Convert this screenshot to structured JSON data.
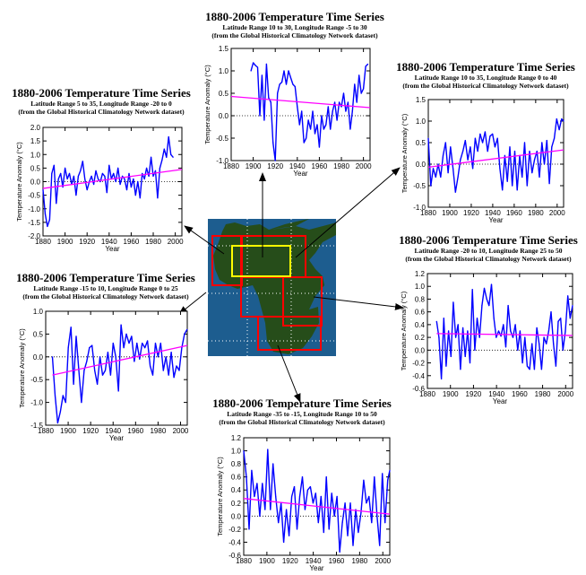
{
  "chart_data": [
    {
      "id": "a",
      "type": "line",
      "title": "1880-2006 Temperature Time Series",
      "subtitle": "Latitude Range 10 to 30, Longitude Range -5 to 30",
      "source": "(from the Global Historical Climatology Network dataset)",
      "xlabel": "Year",
      "ylabel": "Temperature Anomaly (°C)",
      "xlim": [
        1880,
        2006
      ],
      "ylim": [
        -1.0,
        1.5
      ],
      "xticks": [
        "1880",
        "1900",
        "1920",
        "1940",
        "1960",
        "1980",
        "2000"
      ],
      "yticks": [
        "-1.0",
        "-0.5",
        "0.0",
        "0.5",
        "1.0",
        "1.5"
      ],
      "x_start": 1898,
      "x_step": 2,
      "values": [
        1.0,
        1.18,
        1.12,
        1.08,
        0.0,
        0.9,
        -0.1,
        1.15,
        0.4,
        0.3,
        -0.6,
        -1.0,
        0.5,
        0.7,
        0.75,
        1.0,
        0.7,
        1.0,
        0.85,
        0.7,
        0.65,
        0.2,
        -0.2,
        0.1,
        -0.6,
        -0.5,
        -0.1,
        -0.3,
        0.1,
        -0.4,
        -0.2,
        -0.7,
        0.0,
        -0.3,
        -0.2,
        0.2,
        -0.3,
        0.1,
        0.3,
        -0.1,
        0.3,
        0.2,
        0.5,
        0.1,
        0.3,
        -0.3,
        0.1,
        0.7,
        0.3,
        0.9,
        0.5,
        0.6,
        1.1,
        1.15
      ],
      "trend": [
        [
          1880,
          0.43
        ],
        [
          2006,
          0.18
        ]
      ]
    },
    {
      "id": "b",
      "type": "line",
      "title": "1880-2006 Temperature Time Series",
      "subtitle": "Latitude Range 5 to 35, Longitude Range -20 to 0",
      "source": "(from the Global Historical Climatology Network dataset)",
      "xlabel": "Year",
      "ylabel": "Temperature Anomaly (°C)",
      "xlim": [
        1880,
        2006
      ],
      "ylim": [
        -2.0,
        2.0
      ],
      "xticks": [
        "1880",
        "1900",
        "1920",
        "1940",
        "1960",
        "1980",
        "2000"
      ],
      "yticks": [
        "-2.0",
        "-1.5",
        "-1.0",
        "-0.5",
        "0.0",
        "0.5",
        "1.0",
        "1.5",
        "2.0"
      ],
      "x_start": 1880,
      "x_step": 2,
      "values": [
        -0.3,
        -1.2,
        -1.65,
        -1.4,
        0.3,
        0.6,
        -0.8,
        0.1,
        0.3,
        -0.2,
        0.5,
        0.1,
        0.3,
        -0.1,
        0.2,
        -0.5,
        0.2,
        0.4,
        0.75,
        0.1,
        -0.3,
        0.0,
        0.2,
        -0.1,
        0.4,
        0.1,
        0.0,
        0.3,
        0.2,
        -0.4,
        0.6,
        0.1,
        0.3,
        0.0,
        0.5,
        -0.1,
        0.2,
        0.1,
        -0.3,
        0.3,
        -0.2,
        0.1,
        -0.5,
        0.0,
        -0.6,
        0.3,
        0.1,
        0.5,
        0.2,
        0.9,
        0.2,
        0.4,
        -0.6,
        0.5,
        0.8,
        1.2,
        0.9,
        1.65,
        1.0,
        0.9
      ],
      "trend": [
        [
          1880,
          -0.25
        ],
        [
          2006,
          0.45
        ]
      ]
    },
    {
      "id": "c",
      "type": "line",
      "title": "1880-2006 Temperature Time Series",
      "subtitle": "Latitude Range 10 to 35, Longitude Range 0 to 40",
      "source": "(from the Global Historical Climatology Network dataset)",
      "xlabel": "Year",
      "ylabel": "Temperature Anomaly (°C)",
      "xlim": [
        1880,
        2006
      ],
      "ylim": [
        -1.0,
        1.5
      ],
      "xticks": [
        "1880",
        "1900",
        "1920",
        "1940",
        "1960",
        "1980",
        "2000"
      ],
      "yticks": [
        "-1.0",
        "-0.5",
        "0.0",
        "0.5",
        "1.0",
        "1.5"
      ],
      "x_start": 1880,
      "x_step": 2.3,
      "values": [
        0.6,
        -0.5,
        -0.1,
        -0.3,
        0.0,
        -0.3,
        0.2,
        0.5,
        -0.2,
        0.4,
        -0.1,
        -0.65,
        -0.3,
        0.1,
        0.3,
        0.55,
        0.1,
        0.4,
        -0.1,
        0.6,
        0.3,
        0.7,
        0.5,
        0.75,
        0.3,
        0.65,
        0.7,
        0.4,
        0.6,
        -0.1,
        -0.6,
        0.2,
        -0.4,
        0.4,
        -0.5,
        0.3,
        -0.6,
        0.2,
        -0.3,
        0.5,
        -0.5,
        0.3,
        -0.2,
        0.1,
        0.3,
        -0.3,
        0.5,
        0.0,
        0.55,
        -0.45,
        0.4,
        0.6,
        1.05,
        0.8,
        1.05,
        1.0
      ],
      "trend": [
        [
          1880,
          -0.07
        ],
        [
          2006,
          0.33
        ]
      ]
    },
    {
      "id": "d",
      "type": "line",
      "title": "1880-2006 Temperature Time Series",
      "subtitle": "Latitude Range -15 to 10, Longitude Range 0 to 25",
      "source": "(from the Global Historical Climatology Network dataset)",
      "xlabel": "Year",
      "ylabel": "Temperature Anomaly (°C)",
      "xlim": [
        1880,
        2006
      ],
      "ylim": [
        -1.5,
        1.0
      ],
      "xticks": [
        "1880",
        "1900",
        "1920",
        "1940",
        "1960",
        "1980",
        "2000"
      ],
      "yticks": [
        "-1.5",
        "-1.0",
        "-0.5",
        "0.0",
        "0.5",
        "1.0"
      ],
      "x_start": 1886,
      "x_step": 2.35,
      "values": [
        0.0,
        -0.85,
        -1.45,
        -1.2,
        -0.85,
        -1.0,
        0.2,
        0.65,
        -0.6,
        0.45,
        -0.3,
        -1.0,
        -0.3,
        -0.1,
        0.2,
        0.25,
        -0.3,
        -0.6,
        0.0,
        -0.4,
        -0.3,
        0.1,
        -0.4,
        0.3,
        0.0,
        -0.75,
        0.7,
        0.2,
        0.5,
        0.3,
        0.45,
        -0.1,
        0.3,
        -0.05,
        0.3,
        0.2,
        0.35,
        -0.2,
        -0.4,
        0.3,
        0.0,
        0.3,
        -0.3,
        0.0,
        -0.4,
        0.1,
        -0.45,
        -0.2,
        -0.3,
        0.2,
        0.5,
        0.6
      ],
      "trend": [
        [
          1886,
          -0.4
        ],
        [
          2006,
          0.25
        ]
      ]
    },
    {
      "id": "e",
      "type": "line",
      "title": "1880-2006 Temperature Time Series",
      "subtitle": "Latitude Range -20 to 10, Longitude Range 25 to 50",
      "source": "(from the Global Historical Climatology Network dataset)",
      "xlabel": "Year",
      "ylabel": "Temperature Anomaly (°C)",
      "xlim": [
        1880,
        2006
      ],
      "ylim": [
        -0.6,
        1.2
      ],
      "xticks": [
        "1880",
        "1900",
        "1920",
        "1940",
        "1960",
        "1980",
        "2000"
      ],
      "yticks": [
        "-0.6",
        "-0.4",
        "-0.2",
        "0.0",
        "0.2",
        "0.4",
        "0.6",
        "0.8",
        "1.0",
        "1.2"
      ],
      "x_start": 1888,
      "x_step": 2.07,
      "values": [
        0.45,
        0.2,
        -0.45,
        0.5,
        -0.25,
        0.3,
        -0.1,
        0.75,
        0.2,
        0.4,
        -0.3,
        0.35,
        -0.1,
        0.3,
        -0.2,
        0.95,
        0.0,
        0.5,
        0.2,
        0.7,
        0.97,
        0.8,
        0.7,
        1.03,
        0.5,
        0.2,
        0.3,
        0.22,
        0.4,
        0.05,
        0.7,
        0.3,
        0.2,
        0.4,
        0.0,
        0.3,
        -0.2,
        0.2,
        -0.25,
        -0.3,
        0.1,
        -0.3,
        0.35,
        0.1,
        -0.3,
        0.2,
        0.1,
        0.3,
        0.6,
        0.1,
        -0.25,
        0.45,
        0.5,
        0.0,
        0.3,
        0.85,
        0.5,
        0.7
      ],
      "trend": [
        [
          1888,
          0.26
        ],
        [
          2006,
          0.23
        ]
      ]
    },
    {
      "id": "f",
      "type": "line",
      "title": "1880-2006 Temperature Time Series",
      "subtitle": "Latitude Range -35 to -15, Longitude Range 10 to 50",
      "source": "(from the Global Historical Climatology Network dataset)",
      "xlabel": "Year",
      "ylabel": "Temperature Anomaly (°C)",
      "xlim": [
        1880,
        2006
      ],
      "ylim": [
        -0.6,
        1.2
      ],
      "xticks": [
        "1880",
        "1900",
        "1920",
        "1940",
        "1960",
        "1980",
        "2000"
      ],
      "yticks": [
        "-0.6",
        "-0.4",
        "-0.2",
        "0.0",
        "0.2",
        "0.4",
        "0.6",
        "0.8",
        "1.0",
        "1.2"
      ],
      "x_start": 1880,
      "x_step": 2.3,
      "values": [
        1.0,
        0.6,
        -0.2,
        0.7,
        0.3,
        0.5,
        0.0,
        0.5,
        0.1,
        1.02,
        0.1,
        0.8,
        0.3,
        -0.1,
        0.2,
        -0.4,
        0.1,
        -0.3,
        0.3,
        0.45,
        -0.2,
        0.3,
        0.6,
        0.1,
        0.4,
        0.45,
        0.2,
        0.35,
        -0.1,
        0.3,
        -0.25,
        0.6,
        -0.2,
        0.35,
        0.0,
        0.3,
        -0.55,
        -0.1,
        0.2,
        -0.3,
        0.2,
        -0.45,
        0.1,
        -0.25,
        0.05,
        0.55,
        0.2,
        0.3,
        -0.1,
        0.6,
        0.0,
        -0.45,
        0.65,
        -0.1,
        0.55,
        0.7
      ],
      "trend": [
        [
          1880,
          0.27
        ],
        [
          2006,
          0.03
        ]
      ]
    }
  ],
  "colors": {
    "series": "#0000ff",
    "trend": "#ff00ff",
    "zero": "#000000",
    "ocean": "#1d5d8f",
    "land": "#264d1a",
    "region": "#ff0000",
    "highlight": "#ffff00"
  }
}
